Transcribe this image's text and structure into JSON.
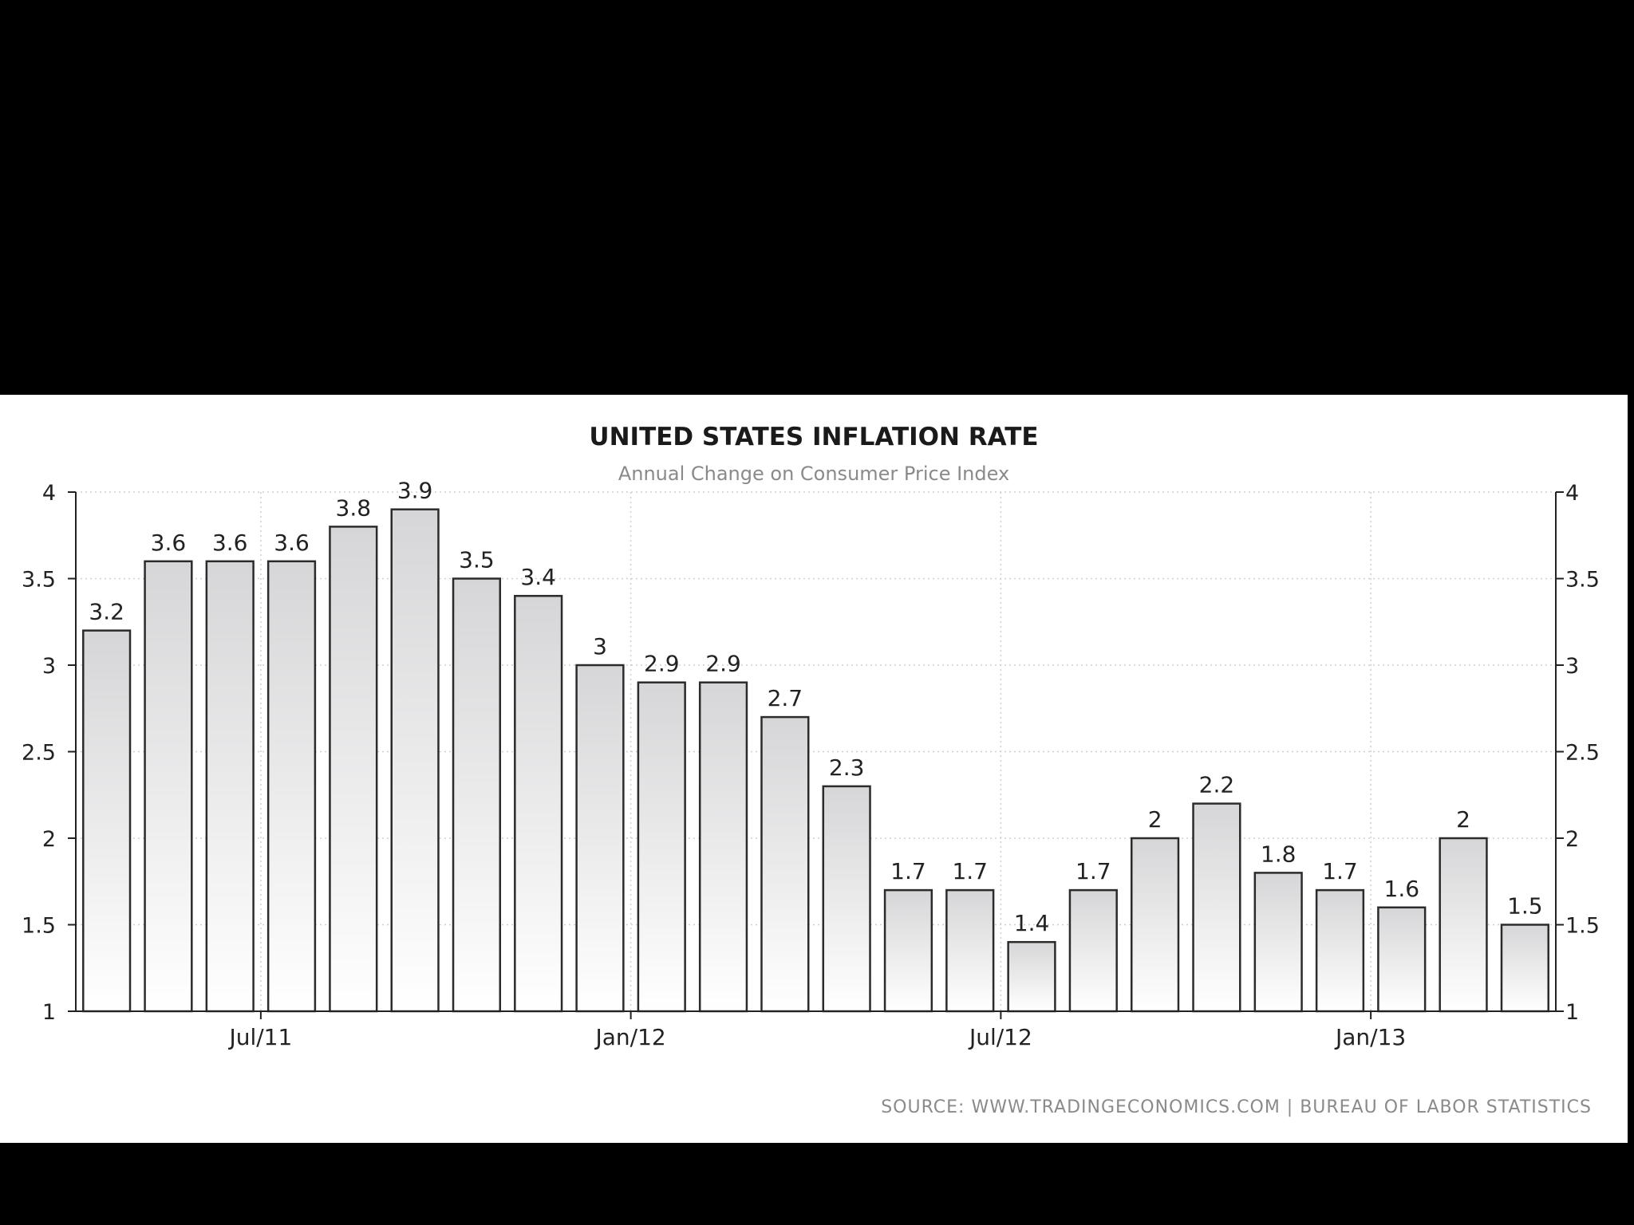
{
  "chart_data": {
    "type": "bar",
    "title": "UNITED STATES INFLATION RATE",
    "subtitle": "Annual Change on Consumer Price Index",
    "source": "SOURCE: WWW.TRADINGECONOMICS.COM | BUREAU OF LABOR STATISTICS",
    "x_tick_labels": [
      "Jul/11",
      "Jan/12",
      "Jul/12",
      "Jan/13"
    ],
    "x_tick_after_index": [
      2,
      8,
      14,
      20
    ],
    "y_ticks": [
      "1",
      "1.5",
      "2",
      "2.5",
      "3",
      "3.5",
      "4"
    ],
    "ylim": [
      1,
      4
    ],
    "values": [
      3.2,
      3.6,
      3.6,
      3.6,
      3.8,
      3.9,
      3.5,
      3.4,
      3.0,
      2.9,
      2.9,
      2.7,
      2.3,
      1.7,
      1.7,
      1.4,
      1.7,
      2.0,
      2.2,
      1.8,
      1.7,
      1.6,
      2.0,
      1.5
    ],
    "value_labels": [
      "3.2",
      "3.6",
      "3.6",
      "3.6",
      "3.8",
      "3.9",
      "3.5",
      "3.4",
      "3",
      "2.9",
      "2.9",
      "2.7",
      "2.3",
      "1.7",
      "1.7",
      "1.4",
      "1.7",
      "2",
      "2.2",
      "1.8",
      "1.7",
      "1.6",
      "2",
      "1.5"
    ],
    "grid": true,
    "secondary_y_axis": true,
    "colors": {
      "bar_top": "#d6d6d8",
      "bar_bottom": "#ffffff",
      "bar_stroke": "#2b2b2b",
      "grid": "#cfcfcf"
    }
  }
}
